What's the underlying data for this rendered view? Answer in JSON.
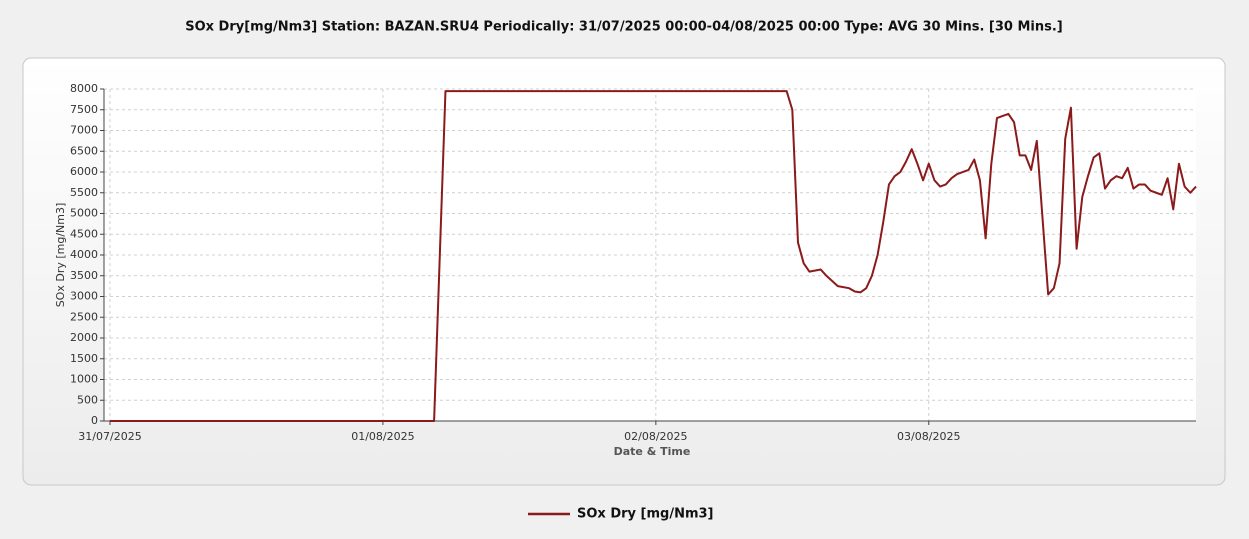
{
  "chart_data": {
    "type": "line",
    "title": "SOx Dry[mg/Nm3] Station: BAZAN.SRU4  Periodically: 31/07/2025 00:00-04/08/2025 00:00  Type: AVG 30 Mins. [30 Mins.]",
    "x_label": "Date & Time",
    "y_label": "SOx Dry [mg/Nm3]",
    "x": [
      0,
      28.5,
      29.5,
      59.5,
      60,
      60.5,
      61,
      61.5,
      62.5,
      63,
      64,
      65,
      65.5,
      66,
      66.5,
      67,
      67.5,
      68,
      68.5,
      69,
      69.5,
      70,
      70.5,
      71,
      71.5,
      72,
      72.5,
      73,
      73.5,
      74,
      74.5,
      75.5,
      76,
      76.5,
      77,
      77.5,
      78,
      78.5,
      79,
      79.5,
      80,
      80.5,
      81,
      81.5,
      82.5,
      83,
      83.5,
      84,
      84.5,
      85,
      85.5,
      86,
      86.5,
      87,
      87.5,
      88,
      88.5,
      89,
      89.5,
      90,
      90.5,
      91,
      91.5,
      92,
      92.5,
      93,
      93.5,
      94,
      94.5,
      95,
      95.5
    ],
    "series": [
      {
        "name": "SOx Dry [mg/Nm3]",
        "color": "#8b1a1a",
        "values": [
          0,
          0,
          7950,
          7950,
          7500,
          4300,
          3800,
          3600,
          3650,
          3500,
          3250,
          3200,
          3120,
          3100,
          3200,
          3500,
          4000,
          4800,
          5700,
          5900,
          6000,
          6250,
          6550,
          6200,
          5800,
          6200,
          5800,
          5650,
          5700,
          5850,
          5950,
          6050,
          6300,
          5800,
          4400,
          6200,
          7300,
          7350,
          7400,
          7200,
          6400,
          6400,
          6050,
          6750,
          3050,
          3200,
          3800,
          6800,
          7550,
          4150,
          5400,
          5900,
          6350,
          6450,
          5600,
          5800,
          5900,
          5850,
          6100,
          5600,
          5700,
          5700,
          5550,
          5500,
          5450,
          5850,
          5100,
          6200,
          5650,
          5500,
          5650
        ]
      }
    ],
    "xlim": [
      0,
      95.5
    ],
    "xticks": [
      {
        "value": 0,
        "label": "31/07/2025"
      },
      {
        "value": 24,
        "label": "01/08/2025"
      },
      {
        "value": 48,
        "label": "02/08/2025"
      },
      {
        "value": 72,
        "label": "03/08/2025"
      }
    ],
    "ylim": [
      0,
      8000
    ],
    "yticks": [
      0,
      500,
      1000,
      1500,
      2000,
      2500,
      3000,
      3500,
      4000,
      4500,
      5000,
      5500,
      6000,
      6500,
      7000,
      7500,
      8000
    ],
    "grid": true
  }
}
